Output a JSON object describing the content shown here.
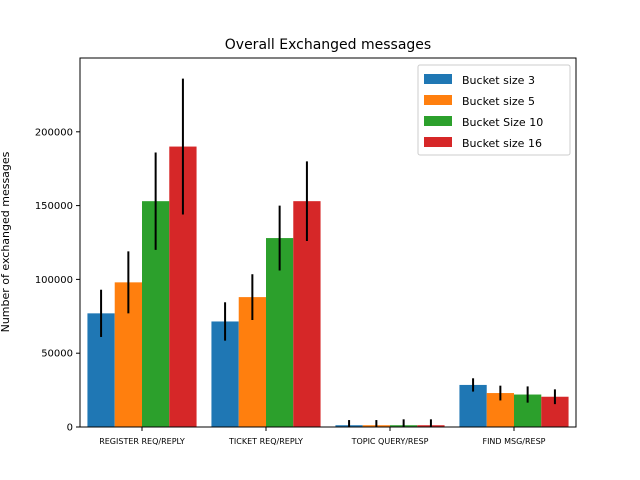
{
  "chart_data": {
    "type": "bar",
    "title": "Overall Exchanged messages",
    "xlabel": "",
    "ylabel": "Number of exchanged messages",
    "categories": [
      "REGISTER REQ/REPLY",
      "TICKET REQ/REPLY",
      "TOPIC QUERY/RESP",
      "FIND MSG/RESP"
    ],
    "ylim": [
      0,
      250000
    ],
    "yticks": [
      0,
      50000,
      100000,
      150000,
      200000
    ],
    "ytick_labels": [
      "0",
      "50000",
      "100000",
      "150000",
      "200000"
    ],
    "grid": false,
    "legend_position": "top-right",
    "series": [
      {
        "name": "Bucket size 3",
        "color": "#1f77b4",
        "values": [
          77000,
          71500,
          1200,
          28500
        ],
        "errors": [
          16000,
          13000,
          3500,
          4500
        ]
      },
      {
        "name": "Bucket size 5",
        "color": "#ff7f0e",
        "values": [
          98000,
          88000,
          1200,
          23000
        ],
        "errors": [
          21000,
          15500,
          3500,
          5000
        ]
      },
      {
        "name": "Bucket Size 10",
        "color": "#2ca02c",
        "values": [
          153000,
          128000,
          1200,
          22000
        ],
        "errors": [
          33000,
          22000,
          4000,
          5500
        ]
      },
      {
        "name": "Bucket size 16",
        "color": "#d62728",
        "values": [
          190000,
          153000,
          1200,
          20500
        ],
        "errors": [
          46000,
          27000,
          4000,
          5000
        ]
      }
    ]
  }
}
